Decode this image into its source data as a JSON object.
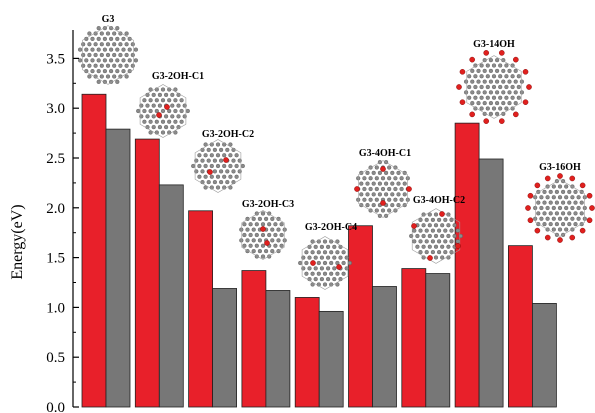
{
  "chart_data": {
    "type": "bar",
    "ylabel": "Energy(eV)",
    "ylim": [
      0.0,
      3.75
    ],
    "yticks": [
      0.0,
      0.5,
      1.0,
      1.5,
      2.0,
      2.5,
      3.0,
      3.5
    ],
    "ytick_labels": [
      "0.0",
      "0.5",
      "1.0",
      "1.5",
      "2.0",
      "2.5",
      "3.0",
      "3.5"
    ],
    "grid": false,
    "categories": [
      "G3",
      "G3-2OH-C1",
      "G3-2OH-C2",
      "G3-2OH-C3",
      "G3-2OH-C4",
      "G3-4OH-C1",
      "G3-4OH-C2",
      "G3-14OH",
      "G3-16OH"
    ],
    "series": [
      {
        "color": "#e8202a",
        "values": [
          3.14,
          2.69,
          1.97,
          1.37,
          1.1,
          1.82,
          1.39,
          2.85,
          1.62
        ]
      },
      {
        "color": "#777777",
        "values": [
          2.79,
          2.23,
          1.19,
          1.17,
          0.96,
          1.21,
          1.34,
          2.49,
          1.04
        ]
      }
    ]
  }
}
